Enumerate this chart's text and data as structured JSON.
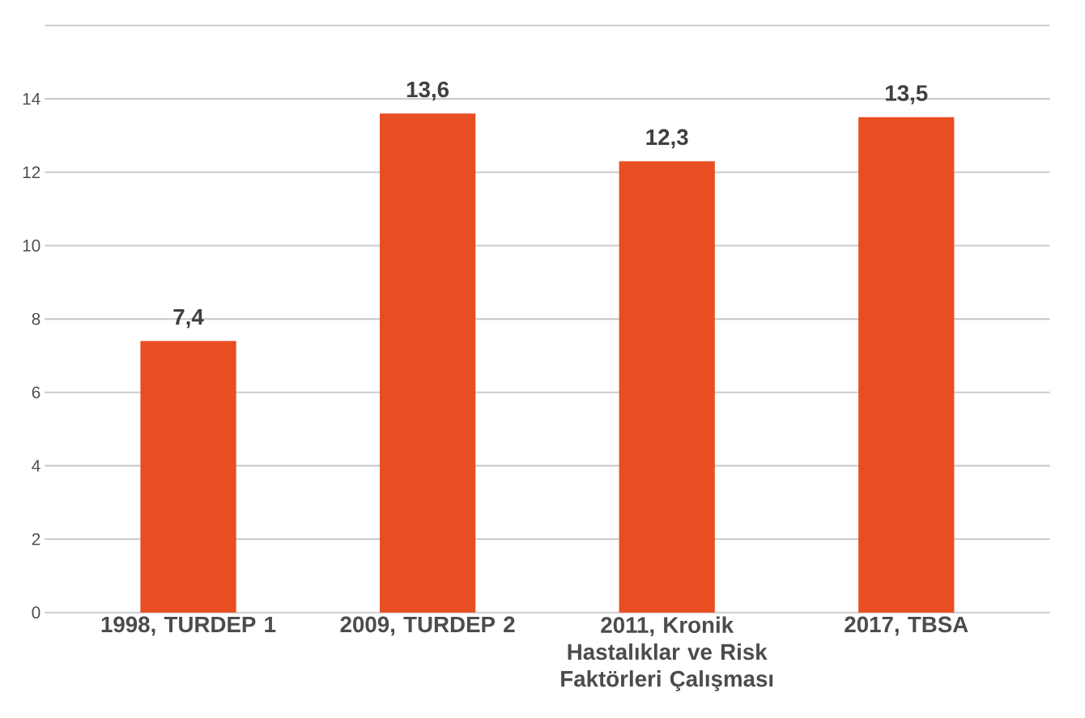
{
  "chart_data": {
    "type": "bar",
    "categories": [
      "1998, TURDEP 1",
      "2009, TURDEP 2",
      "2011, Kronik Hastalıklar ve Risk Faktörleri Çalışması",
      "2017, TBSA"
    ],
    "values": [
      7.4,
      13.6,
      12.3,
      13.5
    ],
    "value_labels": [
      "7,4",
      "13,6",
      "12,3",
      "13,5"
    ],
    "color": "#e84e22",
    "ylim": [
      0,
      16
    ],
    "yticks": [
      0,
      2,
      4,
      6,
      8,
      10,
      12,
      14,
      {
        "value": 16,
        "label": null
      }
    ],
    "grid": "y"
  }
}
